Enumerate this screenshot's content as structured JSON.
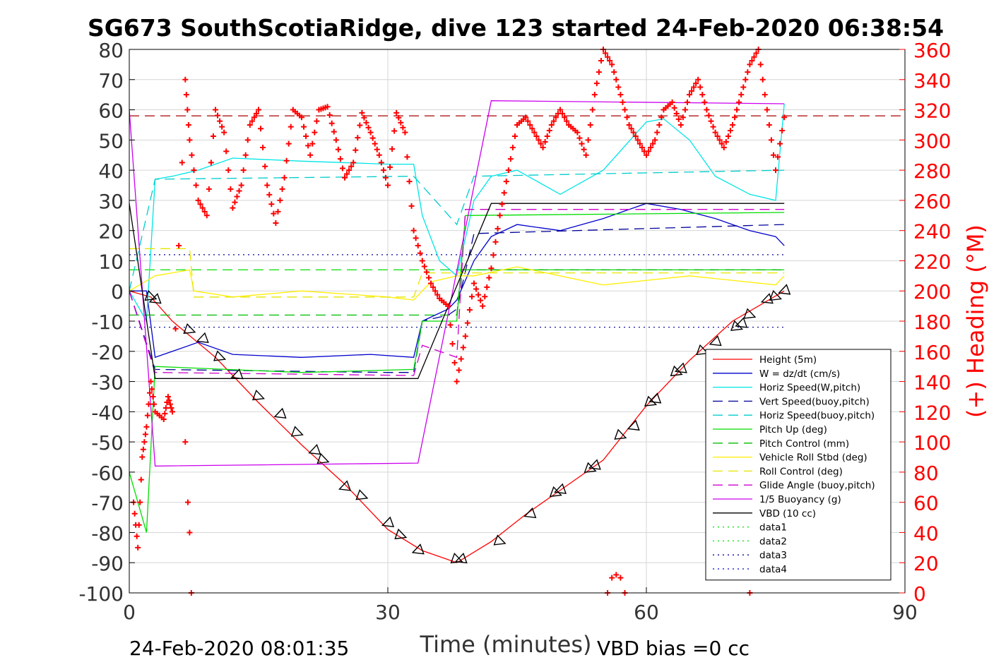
{
  "chart_data": {
    "type": "line",
    "title": "SG673 SouthScotiaRidge, dive 123 started 24-Feb-2020 06:38:54",
    "xlabel": "Time (minutes)",
    "ylabel": "",
    "y2label": "(+) Heading (°M)",
    "xlim": [
      0,
      90
    ],
    "ylim": [
      -100,
      80
    ],
    "y2lim": [
      0,
      360
    ],
    "xticks": [
      "0",
      "30",
      "60",
      "90"
    ],
    "yticks": [
      "80",
      "70",
      "60",
      "50",
      "40",
      "30",
      "20",
      "10",
      "0",
      "-10",
      "-20",
      "-30",
      "-40",
      "-50",
      "-60",
      "-70",
      "-80",
      "-90",
      "-100"
    ],
    "y2ticks": [
      "360",
      "340",
      "320",
      "300",
      "280",
      "260",
      "240",
      "220",
      "200",
      "180",
      "160",
      "140",
      "120",
      "100",
      "80",
      "60",
      "40",
      "20",
      "0"
    ],
    "grid": true,
    "legend_position": "bottom-right",
    "footer_left": "24-Feb-2020 08:01:35",
    "footer_right": "VBD bias =0 cc",
    "colors": {
      "height": "#ff0000",
      "w": "#0000cc",
      "hspeed": "#00e5e5",
      "vspeed_buoy": "#000099",
      "hspeed_buoy": "#00cccc",
      "pitch": "#00dd00",
      "pitch_ctl": "#00bb00",
      "roll": "#ffee00",
      "roll_ctl": "#e6e600",
      "glide": "#cc00cc",
      "buoy": "#cc00ee",
      "vbd": "#000000",
      "heading": "#ff0000"
    },
    "legend": [
      {
        "name": "Height (5m)",
        "key": "height",
        "dash": "solid"
      },
      {
        "name": "W = dz/dt (cm/s)",
        "key": "w",
        "dash": "solid"
      },
      {
        "name": "Horiz Speed(W,pitch)",
        "key": "hspeed",
        "dash": "solid"
      },
      {
        "name": "Vert Speed(buoy,pitch)",
        "key": "vspeed_buoy",
        "dash": "dash"
      },
      {
        "name": "Horiz Speed(buoy,pitch)",
        "key": "hspeed_buoy",
        "dash": "dash"
      },
      {
        "name": "Pitch Up (deg)",
        "key": "pitch",
        "dash": "solid"
      },
      {
        "name": "Pitch Control (mm)",
        "key": "pitch_ctl",
        "dash": "dash"
      },
      {
        "name": "Vehicle Roll Stbd (deg)",
        "key": "roll",
        "dash": "solid"
      },
      {
        "name": "Roll Control (deg)",
        "key": "roll_ctl",
        "dash": "dash"
      },
      {
        "name": "Glide Angle (buoy,pitch)",
        "key": "glide",
        "dash": "dash"
      },
      {
        "name": "1/5 Buoyancy (g)",
        "key": "buoy",
        "dash": "solid"
      },
      {
        "name": "VBD (10 cc)",
        "key": "vbd",
        "dash": "solid"
      },
      {
        "name": "data1",
        "key": "pitch",
        "dash": "dot"
      },
      {
        "name": "data2",
        "key": "pitch",
        "dash": "dot"
      },
      {
        "name": "data3",
        "key": "vspeed_buoy",
        "dash": "dot"
      },
      {
        "name": "data4",
        "key": "w",
        "dash": "dot"
      }
    ],
    "series": [
      {
        "name": "Height (5m)",
        "key": "height",
        "x": [
          0,
          2.5,
          5,
          10,
          15,
          20,
          25,
          30,
          34,
          38,
          42,
          46,
          50,
          55,
          60,
          65,
          70,
          76
        ],
        "y": [
          0,
          -2,
          -10,
          -22,
          -37,
          -51,
          -64,
          -79,
          -86,
          -90,
          -83,
          -74,
          -66,
          -56,
          -38,
          -23,
          -10,
          0
        ]
      },
      {
        "name": "W = dz/dt (cm/s)",
        "key": "w",
        "x": [
          0,
          2,
          3,
          5,
          8,
          12,
          20,
          28,
          33,
          34,
          37,
          38,
          40,
          42,
          45,
          50,
          55,
          60,
          64,
          68,
          72,
          75,
          76
        ],
        "y": [
          0,
          0,
          -22,
          -20,
          -17,
          -21,
          -22,
          -21,
          -22,
          -10,
          -6,
          -3,
          10,
          18,
          22,
          20,
          24,
          29,
          27,
          24,
          20,
          18,
          15
        ]
      },
      {
        "name": "Horiz Speed(W,pitch)",
        "key": "hspeed",
        "x": [
          0,
          2,
          3,
          5,
          8,
          12,
          20,
          30,
          33,
          34,
          36,
          38,
          40,
          42,
          45,
          50,
          55,
          60,
          62,
          65,
          68,
          72,
          75,
          76
        ],
        "y": [
          0,
          -10,
          37,
          38,
          40,
          44,
          43,
          42,
          42,
          25,
          10,
          5,
          30,
          38,
          40,
          32,
          40,
          56,
          57,
          50,
          38,
          32,
          30,
          62
        ]
      },
      {
        "name": "Vert Speed(buoy,pitch)",
        "key": "vspeed_buoy",
        "x": [
          0,
          3,
          30,
          33,
          34,
          37,
          38,
          40,
          76
        ],
        "y": [
          0,
          -26,
          -27,
          -27,
          -10,
          -8,
          -6,
          19,
          22
        ]
      },
      {
        "name": "Horiz Speed(buoy,pitch)",
        "key": "hspeed_buoy",
        "x": [
          0,
          3,
          33,
          38,
          40,
          76
        ],
        "y": [
          0,
          37,
          38,
          22,
          38,
          40
        ]
      },
      {
        "name": "Pitch Up (deg)",
        "key": "pitch",
        "x": [
          0,
          2,
          3,
          20,
          33,
          34,
          38,
          39,
          76
        ],
        "y": [
          -60,
          -80,
          -25,
          -27,
          -26,
          -10,
          -10,
          25,
          26
        ]
      },
      {
        "name": "Pitch Control (mm)",
        "key": "pitch_ctl",
        "x": [
          0,
          3,
          38,
          38.5,
          76
        ],
        "y": [
          -8,
          -8,
          -8,
          7,
          7
        ]
      },
      {
        "name": "Vehicle Roll Stbd (deg)",
        "key": "roll",
        "x": [
          0,
          3,
          7,
          7.5,
          12,
          20,
          30,
          33,
          35,
          38,
          40,
          45,
          55,
          65,
          75,
          76
        ],
        "y": [
          0,
          5,
          7,
          0,
          -2,
          0,
          -2,
          -3,
          3,
          5,
          5,
          8,
          2,
          5,
          2,
          5
        ]
      },
      {
        "name": "Roll Control (deg)",
        "key": "roll_ctl",
        "x": [
          0,
          3,
          7,
          7.5,
          33,
          34,
          76
        ],
        "y": [
          14,
          14,
          14,
          -2,
          -2,
          6,
          6
        ]
      },
      {
        "name": "Glide Angle (buoy,pitch)",
        "key": "glide",
        "x": [
          0,
          3,
          33,
          34,
          38,
          39,
          76
        ],
        "y": [
          0,
          -27,
          -28,
          -18,
          -22,
          27,
          27
        ]
      },
      {
        "name": "1/5 Buoyancy (g)",
        "key": "buoy",
        "x": [
          0,
          3,
          33.5,
          42,
          76
        ],
        "y": [
          60,
          -58,
          -57,
          63,
          62
        ]
      },
      {
        "name": "VBD (10 cc)",
        "key": "vbd",
        "x": [
          0,
          3,
          33.5,
          42,
          76
        ],
        "y": [
          29,
          -29,
          -29,
          29,
          29
        ]
      }
    ],
    "reference_lines": [
      {
        "key": "pitch",
        "y": 7,
        "dash": "dash"
      },
      {
        "key": "vspeed_buoy",
        "y": 12,
        "dash": "dot"
      },
      {
        "key": "vspeed_buoy",
        "y": -12,
        "dash": "dot"
      },
      {
        "key": "heading",
        "y": 58,
        "dash": "dash"
      }
    ],
    "markers": {
      "type": "triangle",
      "x": [
        2.5,
        3,
        7,
        8.5,
        10.5,
        12.5,
        15,
        17.5,
        19.5,
        21.5,
        22.5,
        25,
        27,
        30,
        31.5,
        33.5,
        38,
        38.5,
        43,
        46.5,
        49.5,
        50,
        53.5,
        54,
        57,
        58.5,
        60.5,
        61,
        63.5,
        64,
        66.5,
        68,
        70.5,
        71,
        72,
        74,
        75,
        76
      ],
      "y": [
        -2,
        -3,
        -13,
        -16,
        -22,
        -28,
        -35,
        -41,
        -47,
        -53,
        -56,
        -65,
        -68,
        -77,
        -81,
        -86,
        -89,
        -89,
        -83,
        -74,
        -67,
        -66,
        -59,
        -58,
        -48,
        -45,
        -37,
        -36,
        -27,
        -26,
        -20,
        -17,
        -12,
        -11,
        -8,
        -3,
        -2,
        0
      ]
    },
    "heading_series": {
      "name": "(+) Heading (°M)",
      "x": [
        0.5,
        1,
        1.5,
        2,
        2.5,
        3,
        4,
        4.5,
        5,
        6.5,
        7,
        8,
        9,
        10,
        11,
        12,
        13,
        14,
        15,
        16,
        17,
        18,
        19,
        20,
        21,
        22,
        23,
        24,
        25,
        26,
        27,
        28,
        29,
        30,
        31,
        32,
        33,
        34,
        35,
        36,
        37,
        38,
        39,
        40,
        41,
        42,
        43,
        44,
        45,
        46,
        47,
        48,
        49,
        50,
        51,
        52,
        53,
        54,
        55,
        56,
        57,
        58,
        59,
        60,
        61,
        62,
        63,
        64,
        65,
        66,
        67,
        68,
        69,
        70,
        71,
        72,
        73,
        74,
        75,
        76
      ],
      "y": [
        60,
        30,
        90,
        110,
        140,
        120,
        115,
        130,
        120,
        340,
        300,
        260,
        250,
        320,
        305,
        255,
        270,
        310,
        320,
        270,
        245,
        275,
        320,
        315,
        290,
        320,
        322,
        300,
        275,
        285,
        318,
        305,
        290,
        270,
        318,
        305,
        240,
        220,
        205,
        195,
        190,
        140,
        170,
        205,
        190,
        215,
        250,
        280,
        310,
        315,
        305,
        295,
        310,
        320,
        310,
        305,
        290,
        330,
        360,
        350,
        330,
        310,
        300,
        290,
        300,
        320,
        325,
        310,
        330,
        340,
        320,
        305,
        295,
        310,
        330,
        350,
        360,
        320,
        280,
        315
      ],
      "extra_points": {
        "x": [
          6.5,
          6.8,
          7,
          7.2,
          55.5,
          56,
          56.5,
          57,
          57.5,
          72
        ],
        "y": [
          100,
          60,
          40,
          0,
          0,
          10,
          12,
          10,
          0,
          0
        ]
      }
    }
  }
}
